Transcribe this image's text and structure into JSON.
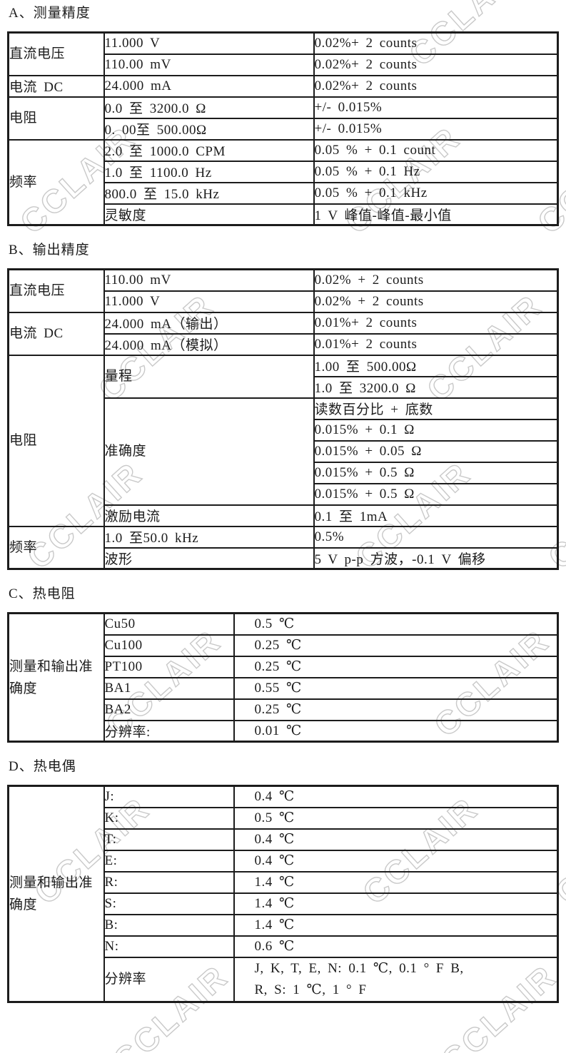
{
  "watermark": {
    "text": "CCLAIR",
    "outline_color": "#c9c9c9"
  },
  "sections": [
    {
      "id": "A",
      "title": "A、测量精度",
      "rows": [
        {
          "c1": "直流电压",
          "c2": "11.000 V",
          "c3": "0.02%+ 2 counts"
        },
        {
          "c2": "110.00 mV",
          "c3": "0.02%+ 2 counts"
        },
        {
          "c1": "电流 DC",
          "c2": "24.000 mA",
          "c3": "0.02%+ 2 counts"
        },
        {
          "c1": "电阻",
          "c2": "0.0 至 3200.0 Ω",
          "c3": "+/- 0.015%"
        },
        {
          "c2": "0. 00至 500.00Ω",
          "c3": "+/- 0.015%"
        },
        {
          "c1": "频率",
          "c2": "2.0 至 1000.0 CPM",
          "c3": "0.05 % + 0.1 count"
        },
        {
          "c2": "1.0 至 1100.0 Hz",
          "c3": "0.05 % + 0.1 Hz"
        },
        {
          "c2": "800.0 至 15.0 kHz",
          "c3": "0.05 % + 0.1 kHz"
        },
        {
          "c2": "灵敏度",
          "c3": "1 V 峰值-峰值-最小值"
        }
      ]
    },
    {
      "id": "B",
      "title": "B、输出精度",
      "rows": [
        {
          "c1": "直流电压",
          "c2": "110.00 mV",
          "c3": "0.02% + 2 counts"
        },
        {
          "c2": "11.000 V",
          "c3": "0.02% + 2 counts"
        },
        {
          "c1": "电流 DC",
          "c2": "24.000 mA（输出）",
          "c3": "0.01%+ 2 counts"
        },
        {
          "c2": "24.000 mA（模拟）",
          "c3": "0.01%+ 2 counts"
        },
        {
          "c1": "电阻",
          "c2": "量程",
          "c3": "1.00 至 500.00Ω"
        },
        {
          "c3": "1.0 至 3200.0 Ω"
        },
        {
          "c2": "准确度",
          "c3": "读数百分比 + 底数"
        },
        {
          "c3": "0.015% + 0.1 Ω"
        },
        {
          "c3": "0.015% + 0.05 Ω"
        },
        {
          "c3": "0.015% + 0.5 Ω"
        },
        {
          "c3": "0.015% + 0.5 Ω"
        },
        {
          "c2": "激励电流",
          "c3": "0.1 至 1mA"
        },
        {
          "c1": "频率",
          "c2": "1.0 至50.0 kHz",
          "c3": "0.5%"
        },
        {
          "c2": "波形",
          "c3": "5 V p-p 方波，-0.1 V 偏移"
        }
      ]
    },
    {
      "id": "C",
      "title": "C、热电阻",
      "rows": [
        {
          "c1": "测量和输出准确度",
          "c2": "Cu50",
          "c3": "0.5 ℃"
        },
        {
          "c2": "Cu100",
          "c3": "0.25 ℃"
        },
        {
          "c2": "PT100",
          "c3": "0.25 ℃"
        },
        {
          "c2": "BA1",
          "c3": "0.55 ℃"
        },
        {
          "c2": "BA2",
          "c3": "0.25 ℃"
        },
        {
          "c2": "分辨率:",
          "c3": "0.01 ℃"
        }
      ]
    },
    {
      "id": "D",
      "title": "D、热电偶",
      "rows": [
        {
          "c1": "测量和输出准确度",
          "c2": "J:",
          "c3": "0.4 ℃"
        },
        {
          "c2": "K:",
          "c3": "0.5 ℃"
        },
        {
          "c2": "T:",
          "c3": "0.4 ℃"
        },
        {
          "c2": "E:",
          "c3": "0.4 ℃"
        },
        {
          "c2": "R:",
          "c3": "1.4 ℃"
        },
        {
          "c2": "S:",
          "c3": "1.4 ℃"
        },
        {
          "c2": "B:",
          "c3": "1.4 ℃"
        },
        {
          "c2": "N:",
          "c3": "0.6 ℃"
        },
        {
          "c2": "分辨率",
          "c3a": "J, K, T, E, N: 0.1 ℃, 0.1 ° F B,",
          "c3b": "R, S: 1 ℃, 1 ° F"
        }
      ]
    }
  ]
}
